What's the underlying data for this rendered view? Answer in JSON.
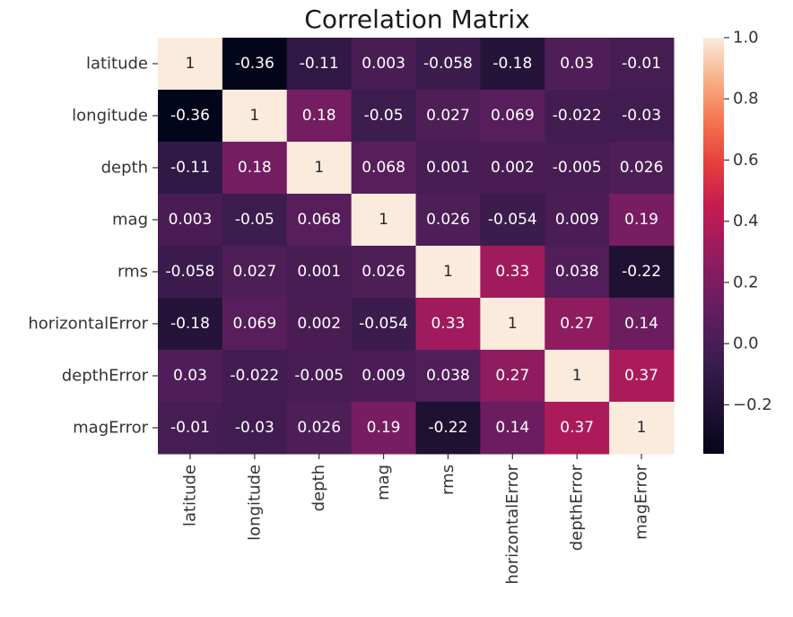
{
  "chart_data": {
    "type": "heatmap",
    "title": "Correlation Matrix",
    "row_labels": [
      "latitude",
      "longitude",
      "depth",
      "mag",
      "rms",
      "horizontalError",
      "depthError",
      "magError"
    ],
    "col_labels": [
      "latitude",
      "longitude",
      "depth",
      "mag",
      "rms",
      "horizontalError",
      "depthError",
      "magError"
    ],
    "values": [
      [
        1,
        -0.36,
        -0.11,
        0.003,
        -0.058,
        -0.18,
        0.03,
        -0.01
      ],
      [
        -0.36,
        1,
        0.18,
        -0.05,
        0.027,
        0.069,
        -0.022,
        -0.03
      ],
      [
        -0.11,
        0.18,
        1,
        0.068,
        0.001,
        0.002,
        -0.005,
        0.026
      ],
      [
        0.003,
        -0.05,
        0.068,
        1,
        0.026,
        -0.054,
        0.009,
        0.19
      ],
      [
        -0.058,
        0.027,
        0.001,
        0.026,
        1,
        0.33,
        0.038,
        -0.22
      ],
      [
        -0.18,
        0.069,
        0.002,
        -0.054,
        0.33,
        1,
        0.27,
        0.14
      ],
      [
        0.03,
        -0.022,
        -0.005,
        0.009,
        0.038,
        0.27,
        1,
        0.37
      ],
      [
        -0.01,
        -0.03,
        0.026,
        0.19,
        -0.22,
        0.14,
        0.37,
        1
      ]
    ],
    "value_labels": [
      [
        "1",
        "-0.36",
        "-0.11",
        "0.003",
        "-0.058",
        "-0.18",
        "0.03",
        "-0.01"
      ],
      [
        "-0.36",
        "1",
        "0.18",
        "-0.05",
        "0.027",
        "0.069",
        "-0.022",
        "-0.03"
      ],
      [
        "-0.11",
        "0.18",
        "1",
        "0.068",
        "0.001",
        "0.002",
        "-0.005",
        "0.026"
      ],
      [
        "0.003",
        "-0.05",
        "0.068",
        "1",
        "0.026",
        "-0.054",
        "0.009",
        "0.19"
      ],
      [
        "-0.058",
        "0.027",
        "0.001",
        "0.026",
        "1",
        "0.33",
        "0.038",
        "-0.22"
      ],
      [
        "-0.18",
        "0.069",
        "0.002",
        "-0.054",
        "0.33",
        "1",
        "0.27",
        "0.14"
      ],
      [
        "0.03",
        "-0.022",
        "-0.005",
        "0.009",
        "0.038",
        "0.27",
        "1",
        "0.37"
      ],
      [
        "-0.01",
        "-0.03",
        "0.026",
        "0.19",
        "-0.22",
        "0.14",
        "0.37",
        "1"
      ]
    ],
    "colorbar": {
      "colormap": "rocket",
      "vmin": -0.36,
      "vmax": 1,
      "ticks": [
        1.0,
        0.8,
        0.6,
        0.4,
        0.2,
        0.0,
        -0.2
      ],
      "tick_labels": [
        "1.0",
        "0.8",
        "0.6",
        "0.4",
        "0.2",
        "0.0",
        "−0.2"
      ],
      "placement": "right"
    },
    "grid": false
  }
}
